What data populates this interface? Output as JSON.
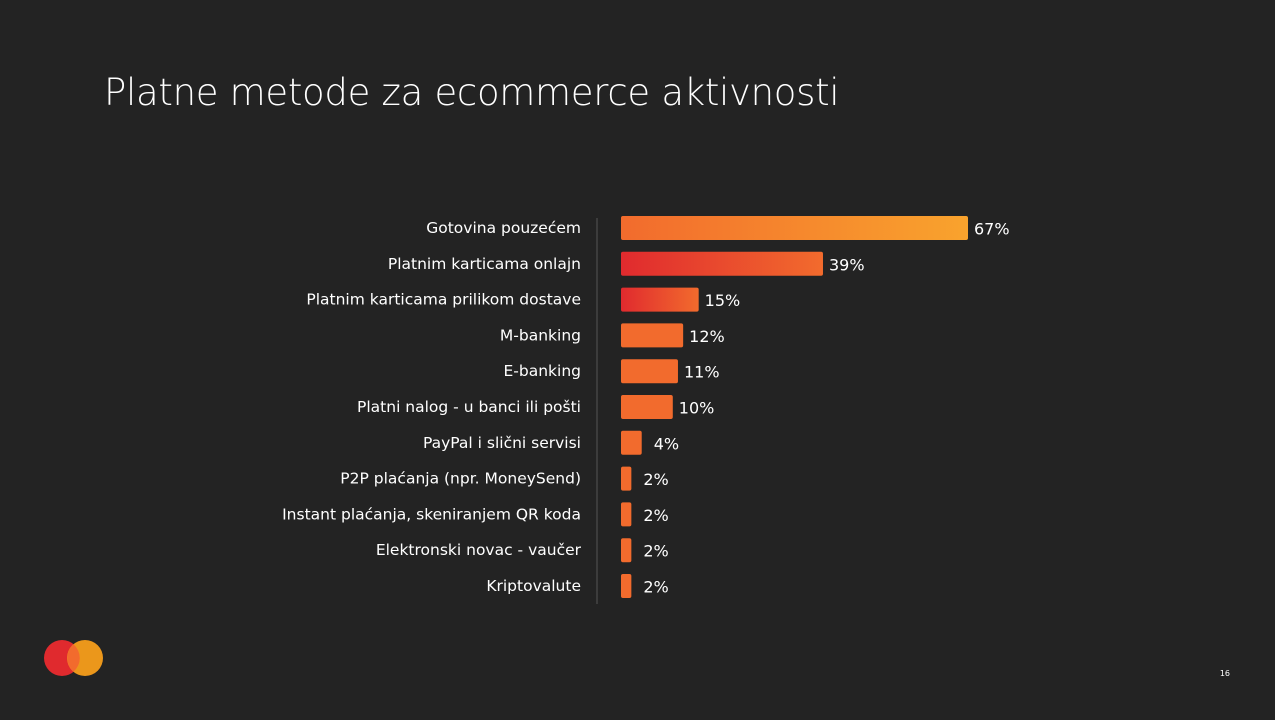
{
  "title": "Platne metode za ecommerce aktivnosti",
  "page_number": "16",
  "colors": {
    "background": "#232323",
    "bar_orange": "#f26b2d",
    "bar_yellow": "#f9a32d",
    "bar_red": "#e02a2e",
    "text": "#ffffff",
    "axis": "#555555"
  },
  "logo": {
    "name": "mastercard-logo",
    "left_color": "#e02a2e",
    "right_color": "#f79e1b"
  },
  "chart_data": {
    "type": "bar",
    "orientation": "horizontal",
    "categories": [
      "Gotovina pouzećem",
      "Platnim karticama onlajn",
      "Platnim karticama prilikom dostave",
      "M-banking",
      "E-banking",
      "Platni nalog - u banci ili pošti",
      "PayPal i slični servisi",
      "P2P plaćanja (npr. MoneySend)",
      "Instant plaćanja, skeniranjem QR koda",
      "Elektronski novac - vaučer",
      "Kriptovalute"
    ],
    "values": [
      67,
      39,
      15,
      12,
      11,
      10,
      4,
      2,
      2,
      2,
      2
    ],
    "value_labels": [
      "67%",
      "39%",
      "15%",
      "12%",
      "11%",
      "10%",
      "4%",
      "2%",
      "2%",
      "2%",
      "2%"
    ],
    "bar_fills": [
      "orange-to-yellow",
      "red-to-orange",
      "red-to-orange",
      "orange",
      "orange",
      "orange",
      "orange",
      "orange",
      "orange",
      "orange",
      "orange"
    ],
    "unit": "%",
    "xlim": [
      0,
      67
    ],
    "grid": false,
    "legend": "none"
  }
}
